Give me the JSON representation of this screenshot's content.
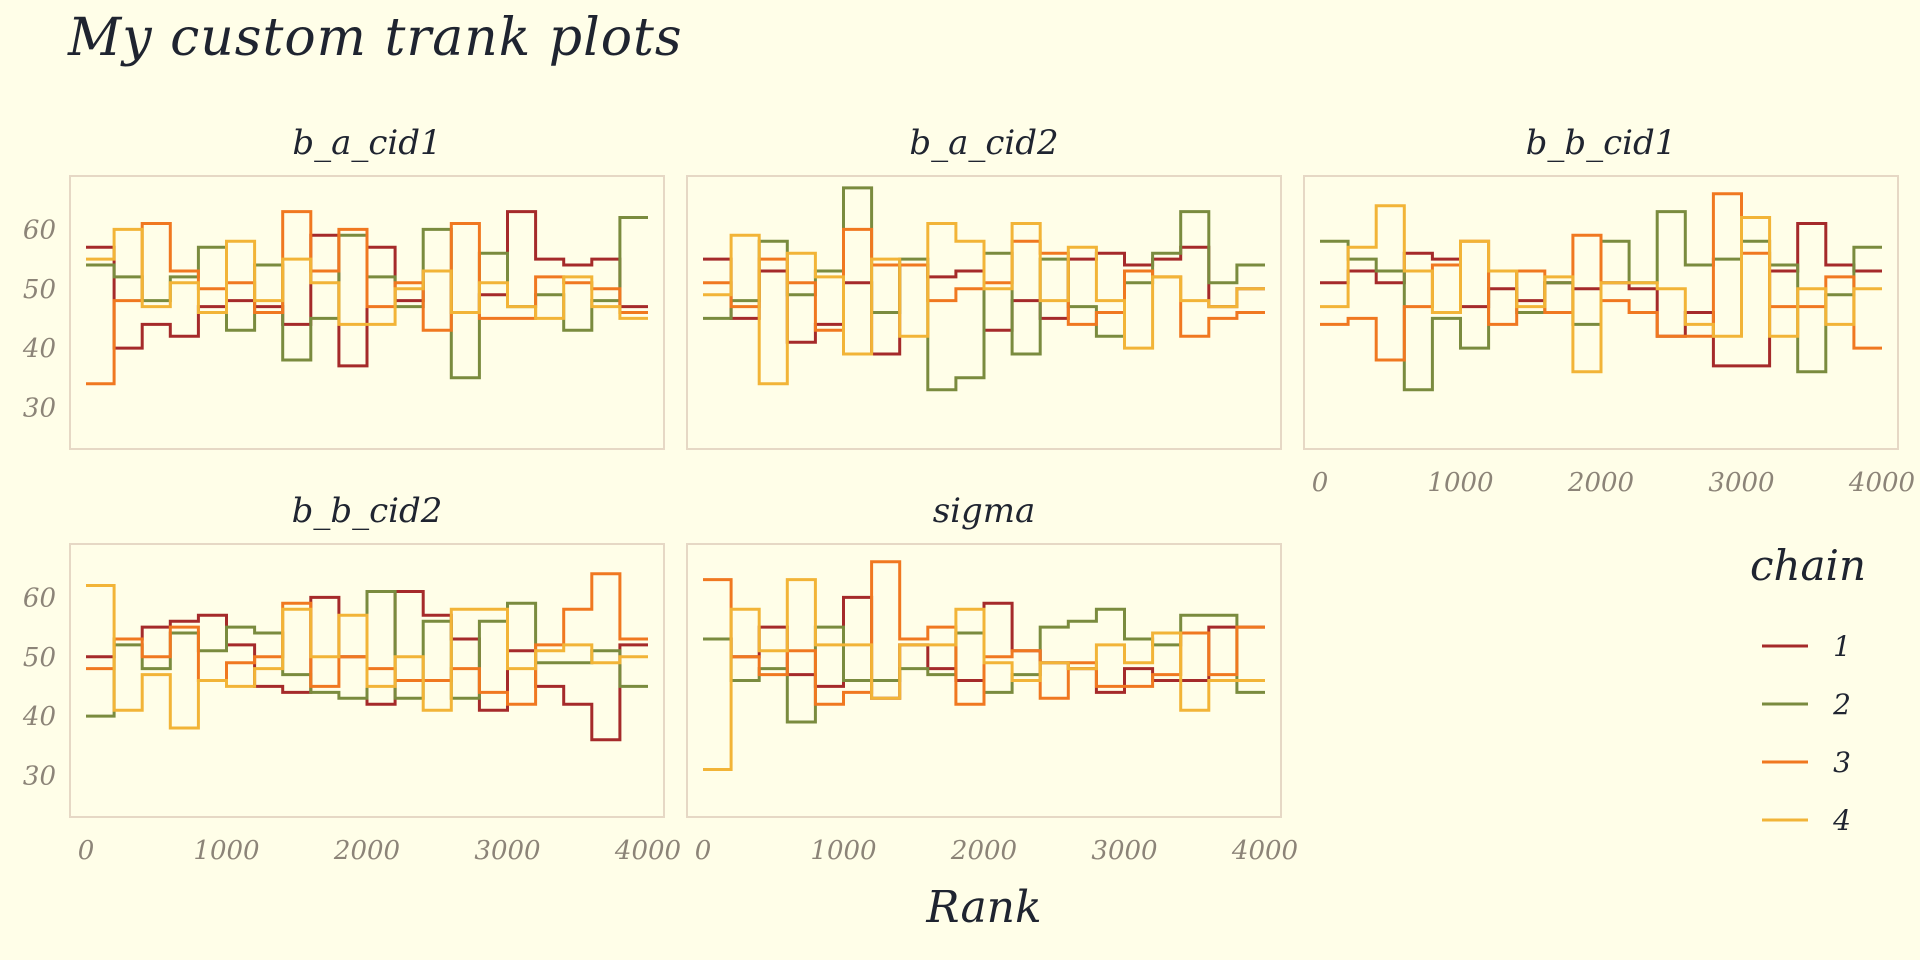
{
  "title": "My custom trank plots",
  "colors": {
    "background": "#FFFEE8",
    "panel_border": "#E6D8C5",
    "chain": [
      "#A52A2A",
      "#7A8B3E",
      "#F07820",
      "#F2B437"
    ]
  },
  "chart_data": {
    "type": "line",
    "subtype": "trace-rank (trank) step plot",
    "xlabel": "Rank",
    "ylabel": "",
    "xlim": [
      0,
      4000
    ],
    "ylim": [
      23,
      69
    ],
    "xticks": [
      0,
      1000,
      2000,
      3000,
      4000
    ],
    "yticks": [
      30,
      40,
      50,
      60
    ],
    "grid": false,
    "legend": {
      "title": "chain",
      "position": "right",
      "entries": [
        "1",
        "2",
        "3",
        "4"
      ]
    },
    "x_bin_edges": [
      0,
      200,
      400,
      600,
      800,
      1000,
      1200,
      1400,
      1600,
      1800,
      2000,
      2200,
      2400,
      2600,
      2800,
      3000,
      3200,
      3400,
      3600,
      3800,
      4000
    ],
    "panels": [
      {
        "name": "b_a_cid1",
        "series": [
          {
            "name": "1",
            "values": [
              57,
              40,
              44,
              42,
              47,
              48,
              47,
              44,
              59,
              37,
              57,
              48,
              53,
              46,
              49,
              63,
              55,
              54,
              55,
              47
            ]
          },
          {
            "name": "2",
            "values": [
              54,
              52,
              48,
              52,
              57,
              43,
              54,
              38,
              45,
              59,
              52,
              47,
              60,
              35,
              56,
              47,
              49,
              43,
              48,
              62
            ]
          },
          {
            "name": "3",
            "values": [
              34,
              48,
              61,
              53,
              50,
              51,
              46,
              63,
              53,
              60,
              47,
              51,
              43,
              61,
              45,
              45,
              52,
              51,
              50,
              46
            ]
          },
          {
            "name": "4",
            "values": [
              55,
              60,
              47,
              51,
              46,
              58,
              48,
              55,
              51,
              44,
              44,
              50,
              53,
              46,
              51,
              47,
              45,
              52,
              47,
              45
            ]
          }
        ]
      },
      {
        "name": "b_a_cid2",
        "series": [
          {
            "name": "1",
            "values": [
              55,
              45,
              53,
              41,
              44,
              51,
              39,
              54,
              52,
              53,
              43,
              48,
              45,
              55,
              56,
              54,
              55,
              57,
              47,
              50
            ]
          },
          {
            "name": "2",
            "values": [
              45,
              48,
              58,
              49,
              53,
              67,
              46,
              55,
              33,
              35,
              56,
              39,
              55,
              47,
              42,
              51,
              56,
              63,
              51,
              54
            ]
          },
          {
            "name": "3",
            "values": [
              51,
              47,
              55,
              51,
              43,
              60,
              54,
              54,
              48,
              50,
              51,
              58,
              56,
              44,
              46,
              53,
              52,
              42,
              45,
              46
            ]
          },
          {
            "name": "4",
            "values": [
              49,
              59,
              34,
              56,
              52,
              39,
              55,
              42,
              61,
              58,
              50,
              61,
              48,
              57,
              48,
              40,
              52,
              48,
              47,
              50
            ]
          }
        ]
      },
      {
        "name": "b_b_cid1",
        "series": [
          {
            "name": "1",
            "values": [
              51,
              53,
              51,
              56,
              55,
              47,
              50,
              48,
              51,
              50,
              51,
              50,
              42,
              46,
              37,
              37,
              53,
              61,
              54,
              53
            ]
          },
          {
            "name": "2",
            "values": [
              58,
              55,
              53,
              33,
              45,
              40,
              53,
              46,
              51,
              44,
              58,
              51,
              63,
              54,
              55,
              58,
              54,
              36,
              49,
              57
            ]
          },
          {
            "name": "3",
            "values": [
              44,
              45,
              38,
              47,
              54,
              58,
              44,
              53,
              46,
              59,
              48,
              46,
              42,
              42,
              66,
              56,
              47,
              47,
              52,
              40
            ]
          },
          {
            "name": "4",
            "values": [
              47,
              57,
              64,
              53,
              46,
              58,
              53,
              47,
              52,
              36,
              51,
              51,
              50,
              44,
              42,
              62,
              42,
              50,
              44,
              50
            ]
          }
        ]
      },
      {
        "name": "b_b_cid2",
        "series": [
          {
            "name": "1",
            "values": [
              50,
              53,
              55,
              56,
              57,
              52,
              45,
              44,
              60,
              50,
              42,
              61,
              57,
              53,
              41,
              51,
              45,
              42,
              36,
              52
            ]
          },
          {
            "name": "2",
            "values": [
              40,
              52,
              48,
              54,
              51,
              55,
              54,
              47,
              44,
              43,
              61,
              43,
              56,
              43,
              56,
              59,
              49,
              49,
              51,
              45
            ]
          },
          {
            "name": "3",
            "values": [
              48,
              53,
              50,
              55,
              46,
              49,
              50,
              59,
              45,
              50,
              48,
              46,
              46,
              48,
              44,
              42,
              52,
              58,
              64,
              53
            ]
          },
          {
            "name": "4",
            "values": [
              62,
              41,
              47,
              38,
              46,
              45,
              48,
              58,
              50,
              57,
              45,
              50,
              41,
              58,
              58,
              48,
              51,
              52,
              49,
              50
            ]
          }
        ]
      },
      {
        "name": "sigma",
        "series": [
          {
            "name": "1",
            "values": [
              53,
              50,
              55,
              47,
              45,
              60,
              43,
              52,
              48,
              46,
              59,
              51,
              49,
              48,
              44,
              48,
              46,
              46,
              55,
              55
            ]
          },
          {
            "name": "2",
            "values": [
              53,
              46,
              48,
              39,
              55,
              46,
              46,
              48,
              47,
              54,
              44,
              47,
              55,
              56,
              58,
              53,
              52,
              57,
              57,
              44
            ]
          },
          {
            "name": "3",
            "values": [
              63,
              50,
              47,
              51,
              42,
              44,
              66,
              53,
              55,
              42,
              50,
              51,
              43,
              49,
              45,
              45,
              47,
              54,
              47,
              55
            ]
          },
          {
            "name": "4",
            "values": [
              31,
              58,
              51,
              63,
              52,
              52,
              43,
              52,
              52,
              58,
              49,
              46,
              49,
              48,
              52,
              49,
              54,
              41,
              46,
              46
            ]
          }
        ]
      }
    ]
  }
}
